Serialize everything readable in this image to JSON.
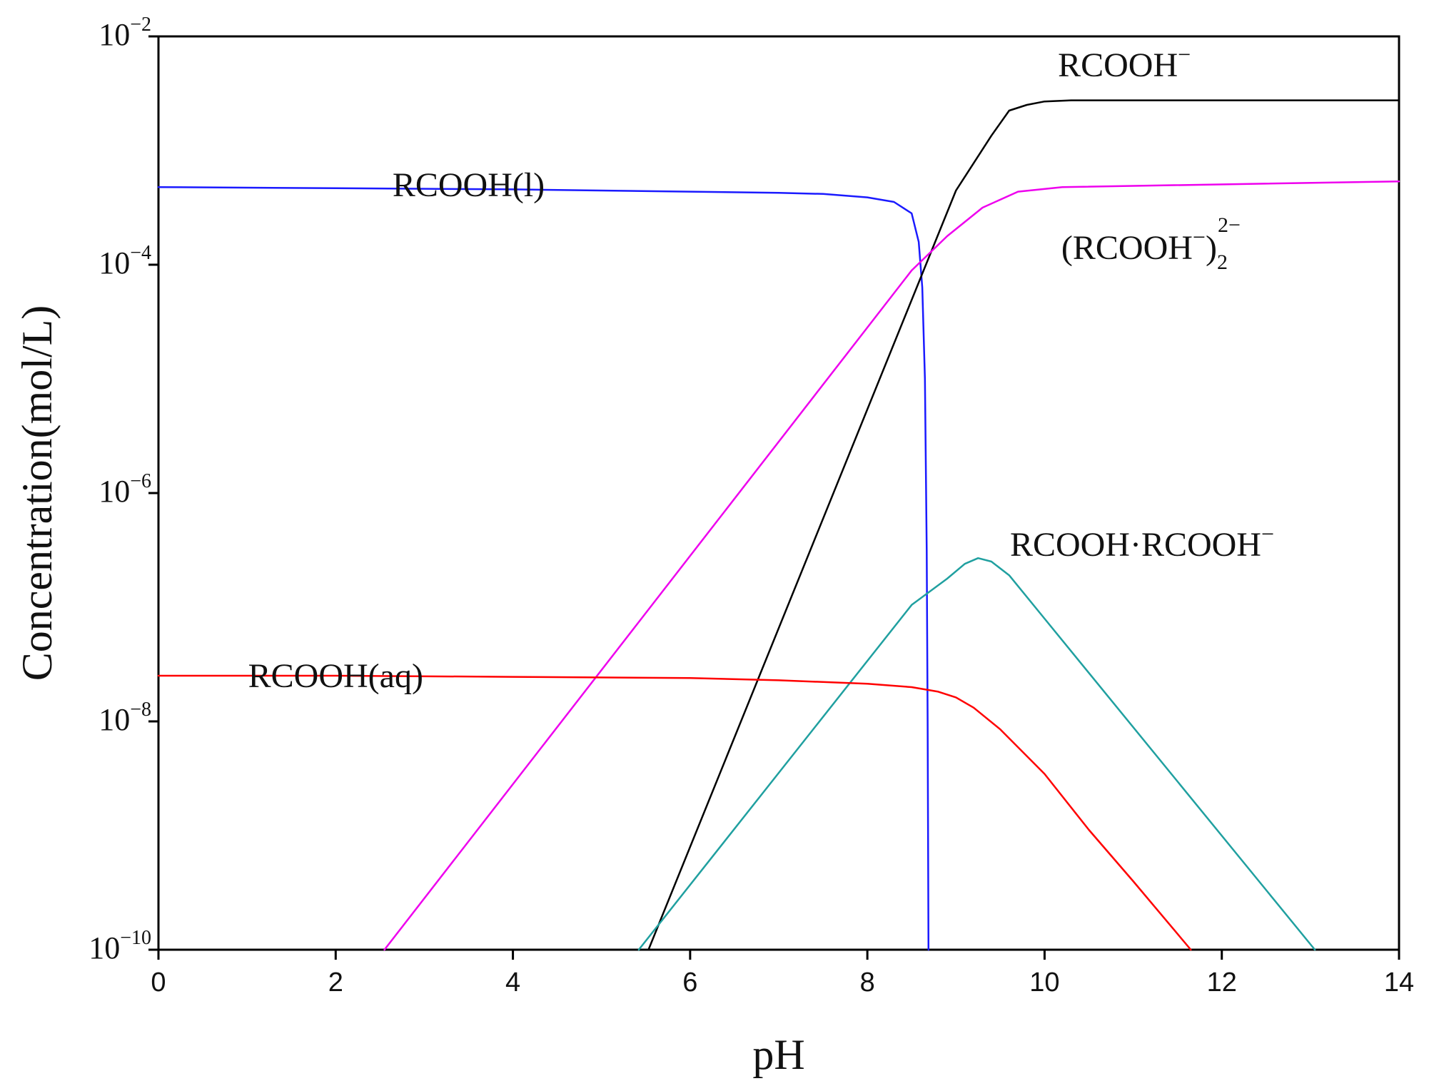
{
  "chart_data": {
    "type": "line",
    "title": "",
    "xlabel": "pH",
    "ylabel": "Concentration(mol/L)",
    "xlim": [
      0,
      14
    ],
    "ylim_log10": [
      -10,
      -2
    ],
    "y_scale": "log",
    "grid": false,
    "x_ticks": [
      {
        "value": 0,
        "label": "0"
      },
      {
        "value": 2,
        "label": "2"
      },
      {
        "value": 4,
        "label": "4"
      },
      {
        "value": 6,
        "label": "6"
      },
      {
        "value": 8,
        "label": "8"
      },
      {
        "value": 10,
        "label": "10"
      },
      {
        "value": 12,
        "label": "12"
      },
      {
        "value": 14,
        "label": "14"
      }
    ],
    "y_ticks": [
      {
        "log10": -2,
        "base": "10",
        "exp": "−2"
      },
      {
        "log10": -4,
        "base": "10",
        "exp": "−4"
      },
      {
        "log10": -6,
        "base": "10",
        "exp": "−6"
      },
      {
        "log10": -8,
        "base": "10",
        "exp": "−8"
      },
      {
        "log10": -10,
        "base": "10",
        "exp": "−10"
      }
    ],
    "series": [
      {
        "name": "RCOOH(l)",
        "color": "#1a1aff",
        "label": {
          "main": "RCOOH(l)",
          "at": [
            3.5,
            -3.4
          ],
          "anchor": "middle"
        },
        "points": [
          [
            0,
            -3.32
          ],
          [
            2,
            -3.33
          ],
          [
            4,
            -3.34
          ],
          [
            6,
            -3.36
          ],
          [
            7,
            -3.37
          ],
          [
            7.5,
            -3.38
          ],
          [
            8,
            -3.41
          ],
          [
            8.3,
            -3.45
          ],
          [
            8.5,
            -3.55
          ],
          [
            8.58,
            -3.8
          ],
          [
            8.62,
            -4.2
          ],
          [
            8.65,
            -5
          ],
          [
            8.67,
            -6.5
          ],
          [
            8.68,
            -8
          ],
          [
            8.69,
            -10
          ]
        ]
      },
      {
        "name": "RCOOH-",
        "color": "#000000",
        "label": {
          "main": "RCOOH",
          "sup": "−",
          "at": [
            10.9,
            -2.35
          ],
          "anchor": "middle"
        },
        "points": [
          [
            5.53,
            -10
          ],
          [
            9.0,
            -3.35
          ],
          [
            9.4,
            -2.87
          ],
          [
            9.6,
            -2.65
          ],
          [
            9.8,
            -2.6
          ],
          [
            10.0,
            -2.57
          ],
          [
            10.3,
            -2.56
          ],
          [
            14,
            -2.56
          ]
        ]
      },
      {
        "name": "(RCOOH-)2 2-",
        "color": "#ee00ee",
        "label": {
          "main": "(RCOOH",
          "sup": "−",
          "close": ")",
          "sub": "2",
          "sup2": "2−",
          "at": [
            11.2,
            -3.95
          ],
          "anchor": "middle"
        },
        "points": [
          [
            2.55,
            -10
          ],
          [
            8.5,
            -4.05
          ],
          [
            8.9,
            -3.75
          ],
          [
            9.3,
            -3.5
          ],
          [
            9.7,
            -3.36
          ],
          [
            10.2,
            -3.32
          ],
          [
            14,
            -3.27
          ]
        ]
      },
      {
        "name": "RCOOH·RCOOH-",
        "color": "#20a0a0",
        "label": {
          "main": "RCOOH·RCOOH",
          "sup": "−",
          "at": [
            11.1,
            -6.55
          ],
          "anchor": "middle"
        },
        "points": [
          [
            5.42,
            -10
          ],
          [
            8.5,
            -6.98
          ],
          [
            8.9,
            -6.75
          ],
          [
            9.1,
            -6.62
          ],
          [
            9.25,
            -6.57
          ],
          [
            9.4,
            -6.6
          ],
          [
            9.6,
            -6.72
          ],
          [
            10,
            -7.1
          ],
          [
            13.05,
            -10
          ]
        ]
      },
      {
        "name": "RCOOH(aq)",
        "color": "#ff0000",
        "label": {
          "main": "RCOOH(aq)",
          "at": [
            2.0,
            -7.7
          ],
          "anchor": "middle"
        },
        "points": [
          [
            0,
            -7.6
          ],
          [
            2,
            -7.6
          ],
          [
            4,
            -7.61
          ],
          [
            6,
            -7.62
          ],
          [
            7,
            -7.64
          ],
          [
            8,
            -7.67
          ],
          [
            8.5,
            -7.7
          ],
          [
            8.8,
            -7.74
          ],
          [
            9.0,
            -7.79
          ],
          [
            9.2,
            -7.88
          ],
          [
            9.5,
            -8.07
          ],
          [
            10,
            -8.46
          ],
          [
            10.5,
            -8.95
          ],
          [
            11,
            -9.4
          ],
          [
            11.65,
            -10
          ]
        ]
      }
    ]
  }
}
